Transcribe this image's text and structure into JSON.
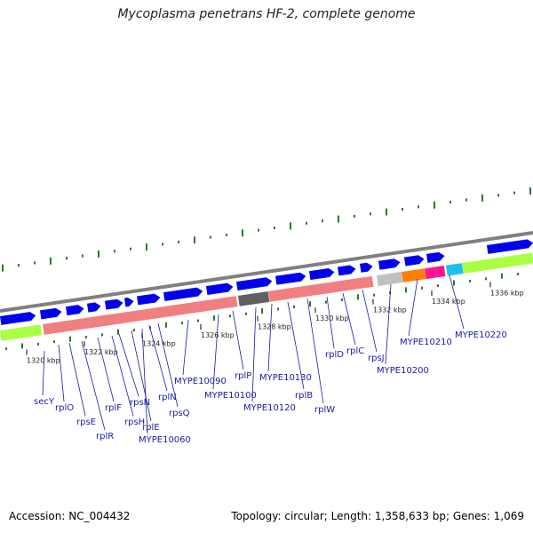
{
  "title": "Mycoplasma penetrans HF-2, complete genome",
  "accession_text": "Accession: NC_004432",
  "summary_text": "Topology: circular; Length: 1,358,633 bp; Genes: 1,069",
  "colors": {
    "backbone": "#808080",
    "forward_gene": "#0000ee",
    "ribosomal_block": "#f08080",
    "lime_block": "#aaff44",
    "gene_label": "#1a1aaa",
    "tick": "#2a7a2a"
  },
  "ruler_ticks": [
    "1320 kbp",
    "1322 kbp",
    "1324 kbp",
    "1326 kbp",
    "1328 kbp",
    "1330 kbp",
    "1332 kbp",
    "1334 kbp",
    "1336 kbp"
  ],
  "gene_labels": [
    "secY",
    "rplO",
    "rpsE",
    "rplR",
    "rplF",
    "rpsH",
    "rpsN",
    "rplE",
    "MYPE10060",
    "rplN",
    "rpsQ",
    "MYPE10090",
    "MYPE10100",
    "rplP",
    "MYPE10120",
    "MYPE10130",
    "rplB",
    "rplW",
    "rplD",
    "rplC",
    "rpsJ",
    "MYPE10200",
    "MYPE10210",
    "MYPE10220"
  ]
}
